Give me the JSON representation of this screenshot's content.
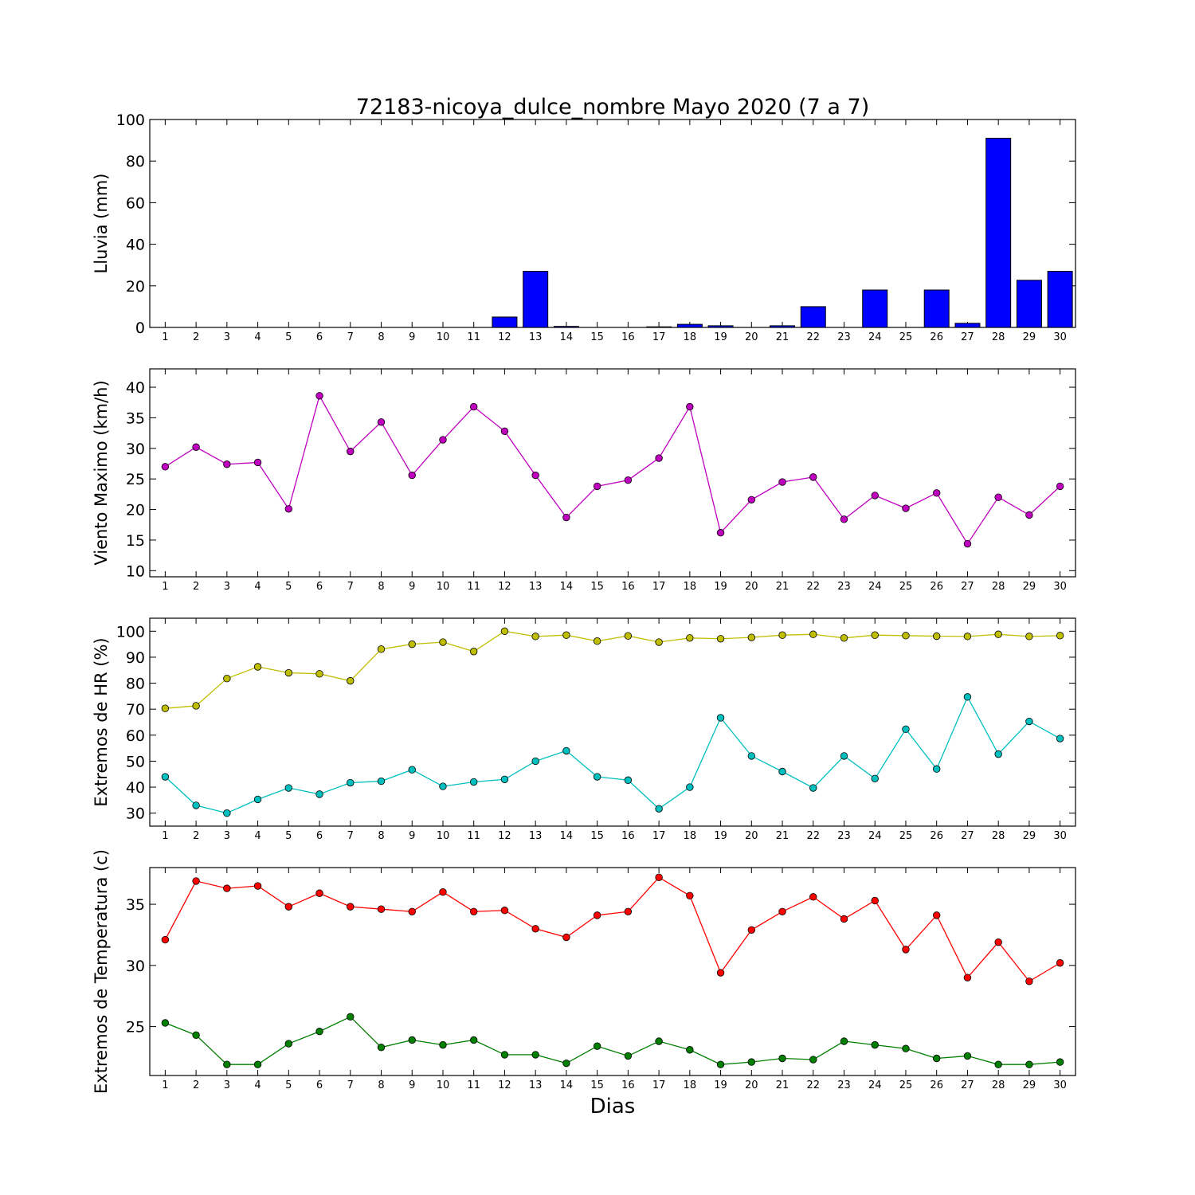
{
  "title": "72183-nicoya_dulce_nombre Mayo 2020  (7 a 7)",
  "xlabel": "Dias",
  "days": [
    1,
    2,
    3,
    4,
    5,
    6,
    7,
    8,
    9,
    10,
    11,
    12,
    13,
    14,
    15,
    16,
    17,
    18,
    19,
    20,
    21,
    22,
    23,
    24,
    25,
    26,
    27,
    28,
    29,
    30
  ],
  "chart_data": [
    {
      "type": "bar",
      "ylabel": "Lluvia (mm)",
      "ylim": [
        0,
        100
      ],
      "yticks": [
        0,
        20,
        40,
        60,
        80,
        100
      ],
      "grid": false,
      "series": [
        {
          "color": "#0000ff",
          "values": [
            0,
            0,
            0,
            0,
            0,
            0,
            0,
            0,
            0,
            0,
            0,
            5,
            27,
            0.5,
            0,
            0,
            0.3,
            1.5,
            0.8,
            0,
            0.8,
            10,
            0,
            18,
            0,
            18,
            2,
            91,
            22.7,
            27
          ]
        }
      ]
    },
    {
      "type": "line",
      "ylabel": "Viento Maximo (km/h)",
      "ylim": [
        9,
        43
      ],
      "yticks": [
        10,
        15,
        20,
        25,
        30,
        35,
        40
      ],
      "grid": false,
      "series": [
        {
          "color": "#bf00bf",
          "values": [
            27,
            30.2,
            27.4,
            27.7,
            20.1,
            38.6,
            29.5,
            34.3,
            25.6,
            31.4,
            36.8,
            32.8,
            25.6,
            18.7,
            23.8,
            24.8,
            28.4,
            36.8,
            16.2,
            21.6,
            24.5,
            25.3,
            18.4,
            22.3,
            20.2,
            22.7,
            14.4,
            22,
            19.1,
            23.8
          ]
        }
      ]
    },
    {
      "type": "line",
      "ylabel": "Extremos de HR (%)",
      "ylim": [
        25,
        105
      ],
      "yticks": [
        30,
        40,
        50,
        60,
        70,
        80,
        90,
        100
      ],
      "grid": false,
      "series": [
        {
          "color": "#bfbf00",
          "values": [
            70.3,
            71.3,
            81.8,
            86.3,
            84,
            83.6,
            80.9,
            93.1,
            95,
            95.8,
            92.2,
            100,
            98,
            98.5,
            96.2,
            98.2,
            95.8,
            97.4,
            97.1,
            97.6,
            98.5,
            98.8,
            97.4,
            98.5,
            98.3,
            98.1,
            98,
            98.8,
            98,
            98.3
          ]
        },
        {
          "color": "#00bfbf",
          "values": [
            44,
            33,
            30,
            35.3,
            39.7,
            37.3,
            41.7,
            42.3,
            46.7,
            40.3,
            42,
            43,
            50,
            54,
            44,
            42.7,
            31.7,
            40,
            66.7,
            52,
            46,
            39.7,
            52,
            43.3,
            62.3,
            47,
            74.7,
            52.7,
            65.3,
            58.7
          ]
        }
      ]
    },
    {
      "type": "line",
      "ylabel": "Extremos de Temperatura (c)",
      "ylim": [
        21,
        38
      ],
      "yticks": [
        25,
        30,
        35
      ],
      "grid": false,
      "series": [
        {
          "color": "#ff0000",
          "values": [
            32.1,
            36.9,
            36.3,
            36.5,
            34.8,
            35.9,
            34.8,
            34.6,
            34.4,
            36,
            34.4,
            34.5,
            33,
            32.3,
            34.1,
            34.4,
            37.2,
            35.7,
            29.4,
            32.9,
            34.4,
            35.6,
            33.8,
            35.3,
            31.3,
            34.1,
            29,
            31.9,
            28.7,
            30.2
          ]
        },
        {
          "color": "#007f00",
          "values": [
            25.3,
            24.3,
            21.9,
            21.9,
            23.6,
            24.6,
            25.8,
            23.3,
            23.9,
            23.5,
            23.9,
            22.7,
            22.7,
            22,
            23.4,
            22.6,
            23.8,
            23.1,
            21.9,
            22.1,
            22.4,
            22.3,
            23.8,
            23.5,
            23.2,
            22.4,
            22.6,
            21.9,
            21.9,
            22.1
          ]
        }
      ]
    }
  ]
}
